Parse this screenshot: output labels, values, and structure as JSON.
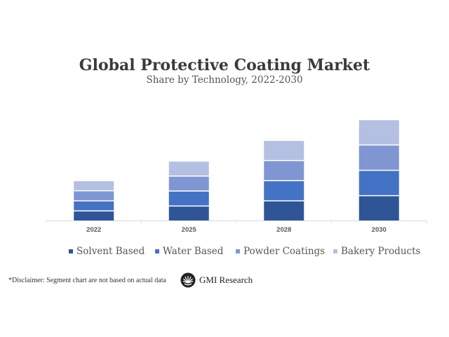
{
  "chart_data": {
    "type": "bar",
    "stacked": true,
    "title": "Global Protective Coating Market",
    "subtitle": "Share by Technology, 2022-2030",
    "xlabel": "",
    "ylabel": "",
    "categories": [
      "2022",
      "2025",
      "2028",
      "2030"
    ],
    "series": [
      {
        "name": "Solvent Based",
        "color": "#2f5597",
        "values": [
          3.5,
          5.2,
          7.0,
          8.8
        ]
      },
      {
        "name": "Water Based",
        "color": "#4472c4",
        "values": [
          3.5,
          5.2,
          7.0,
          8.8
        ]
      },
      {
        "name": "Powder Coatings",
        "color": "#7f96d2",
        "values": [
          3.5,
          5.2,
          7.0,
          8.8
        ]
      },
      {
        "name": "Bakery Products",
        "color": "#b4c0e2",
        "values": [
          3.5,
          5.2,
          7.0,
          8.8
        ]
      }
    ],
    "ylim": [
      0,
      40
    ],
    "grid": false,
    "y_axis_visible": false,
    "legend_position": "bottom"
  },
  "footer": {
    "disclaimer": "*Disclaimer:  Segment chart are not based on actual data",
    "brand": "GMI Research",
    "brand_icon": "gmi-logo-icon"
  }
}
